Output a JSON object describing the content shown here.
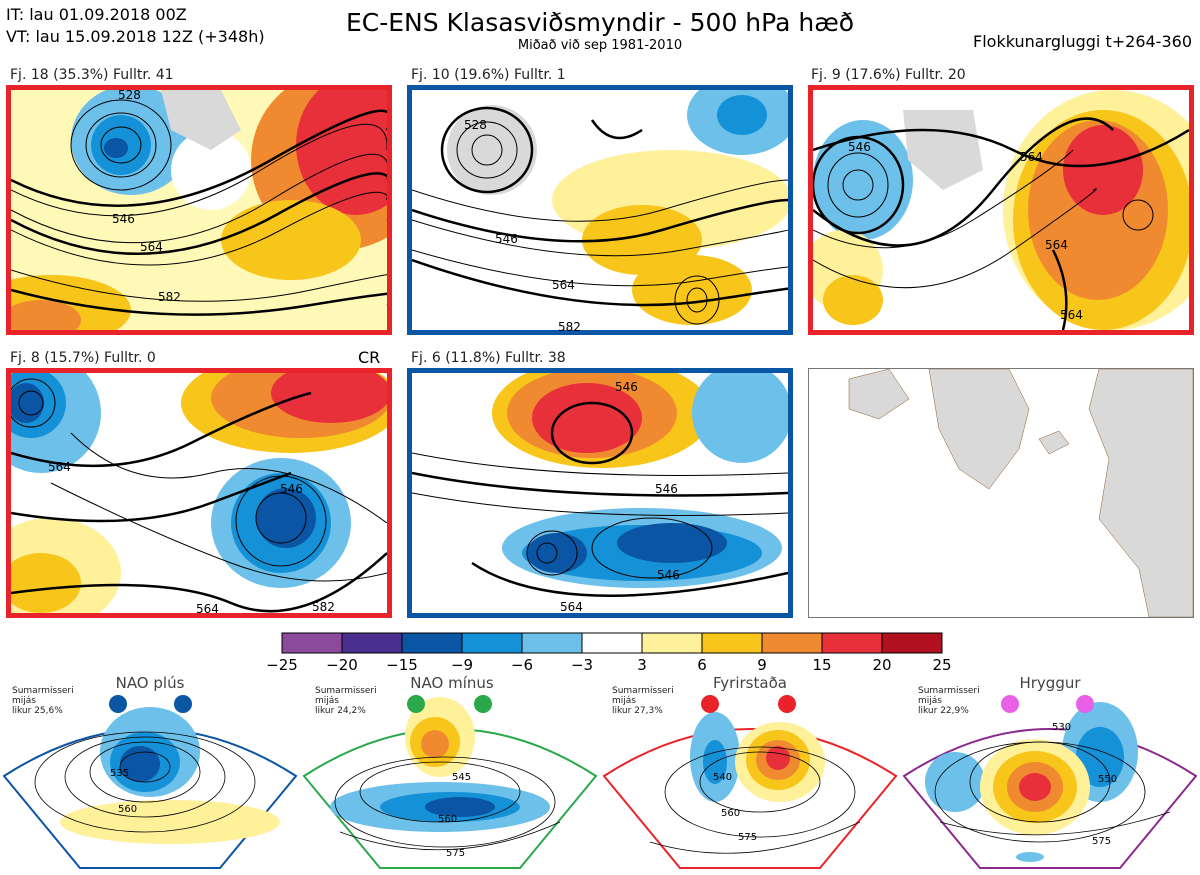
{
  "header": {
    "it_line": "IT: lau 01.09.2018 00Z",
    "vt_line": "VT: lau 15.09.2018 12Z  (+348h)",
    "title": "EC-ENS Klasasviðsmyndir - 500 hPa hæð",
    "subtitle": "Miðað við sep 1981-2010",
    "window": "Flokkunargluggi t+264-360"
  },
  "clusters": [
    {
      "label": "Fj. 18 (35.3%)   Fulltr. 41",
      "border": "red",
      "contours": [
        "546",
        "564",
        "582",
        "528"
      ]
    },
    {
      "label": "Fj. 10 (19.6%)   Fulltr. 1",
      "border": "blue",
      "contours": [
        "528",
        "546",
        "564",
        "582"
      ]
    },
    {
      "label": "Fj. 9 (17.6%)   Fulltr. 20",
      "border": "red",
      "contours": [
        "546",
        "564",
        "564",
        "564"
      ]
    },
    {
      "label": "Fj. 8 (15.7%)   Fulltr. 0",
      "border": "red",
      "extra": "CR",
      "contours": [
        "564",
        "546",
        "564",
        "582"
      ]
    },
    {
      "label": "Fj. 6 (11.8%)   Fulltr. 38",
      "border": "blue",
      "contours": [
        "546",
        "546",
        "546",
        "564"
      ]
    }
  ],
  "colorbar": {
    "ticks": [
      "−25",
      "−20",
      "−15",
      "−9",
      "−6",
      "−3",
      "3",
      "6",
      "9",
      "15",
      "20",
      "25"
    ],
    "colors": [
      "#8b4a9c",
      "#4a2f8f",
      "#0a55a4",
      "#1591d8",
      "#6cc0ea",
      "#ffffff",
      "#fff09a",
      "#f8c51a",
      "#f08a30",
      "#e8303a",
      "#b01020"
    ]
  },
  "regimes": [
    {
      "name": "NAO plús",
      "note": [
        "Sumarmisseri",
        "mijás",
        "likur 25,6%"
      ],
      "color": "#0a55a4",
      "contours": [
        "535",
        "560"
      ]
    },
    {
      "name": "NAO mínus",
      "note": [
        "Sumarmisseri",
        "mijás",
        "likur 24,2%"
      ],
      "color": "#2aa84a",
      "contours": [
        "545",
        "560",
        "575"
      ]
    },
    {
      "name": "Fyrirstaða",
      "note": [
        "Sumarmisseri",
        "mijás",
        "likur 27,3%"
      ],
      "color": "#e8242a",
      "contours": [
        "540",
        "560",
        "575"
      ]
    },
    {
      "name": "Hryggur",
      "note": [
        "Sumarmisseri",
        "mijás",
        "likur 22,9%"
      ],
      "color": "#8b2a8e",
      "contours": [
        "530",
        "550",
        "575"
      ]
    }
  ]
}
